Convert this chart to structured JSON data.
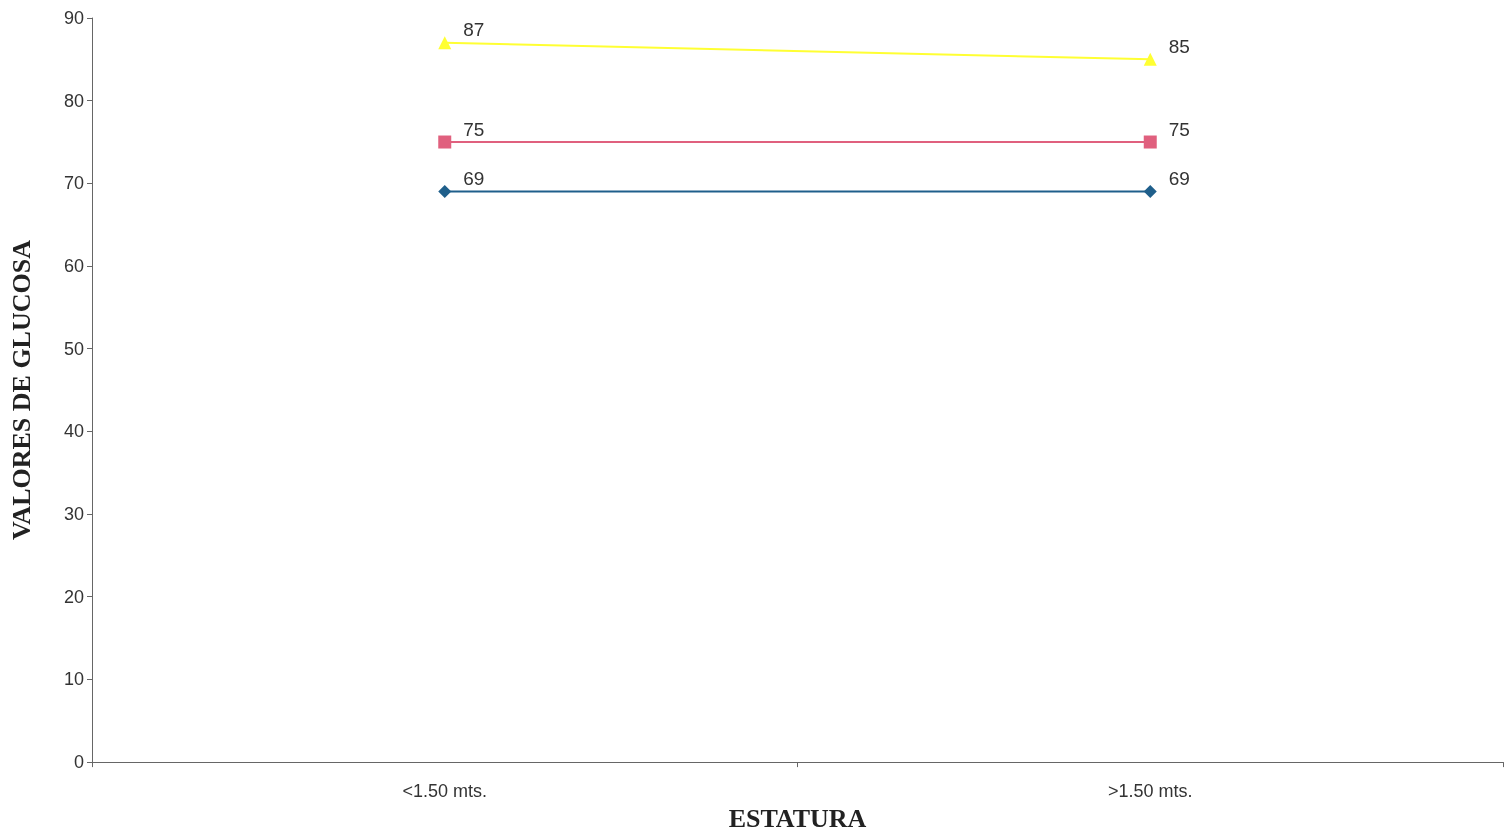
{
  "chart_data": {
    "type": "line",
    "xlabel": "ESTATURA",
    "ylabel": "VALORES DE GLUCOSA",
    "categories": [
      "<1.50 mts.",
      ">1.50 mts."
    ],
    "series": [
      {
        "color": "#ffff33",
        "marker": "triangle",
        "values": [
          87,
          85
        ]
      },
      {
        "color": "#e0607e",
        "marker": "square",
        "values": [
          75,
          75
        ]
      },
      {
        "color": "#1f5f8b",
        "marker": "diamond",
        "values": [
          69,
          69
        ]
      }
    ],
    "ylim": [
      0,
      90
    ],
    "yticks": [
      0,
      10,
      20,
      30,
      40,
      50,
      60,
      70,
      80,
      90
    ],
    "grid": false,
    "data_labels": true,
    "line_style": "solid"
  }
}
